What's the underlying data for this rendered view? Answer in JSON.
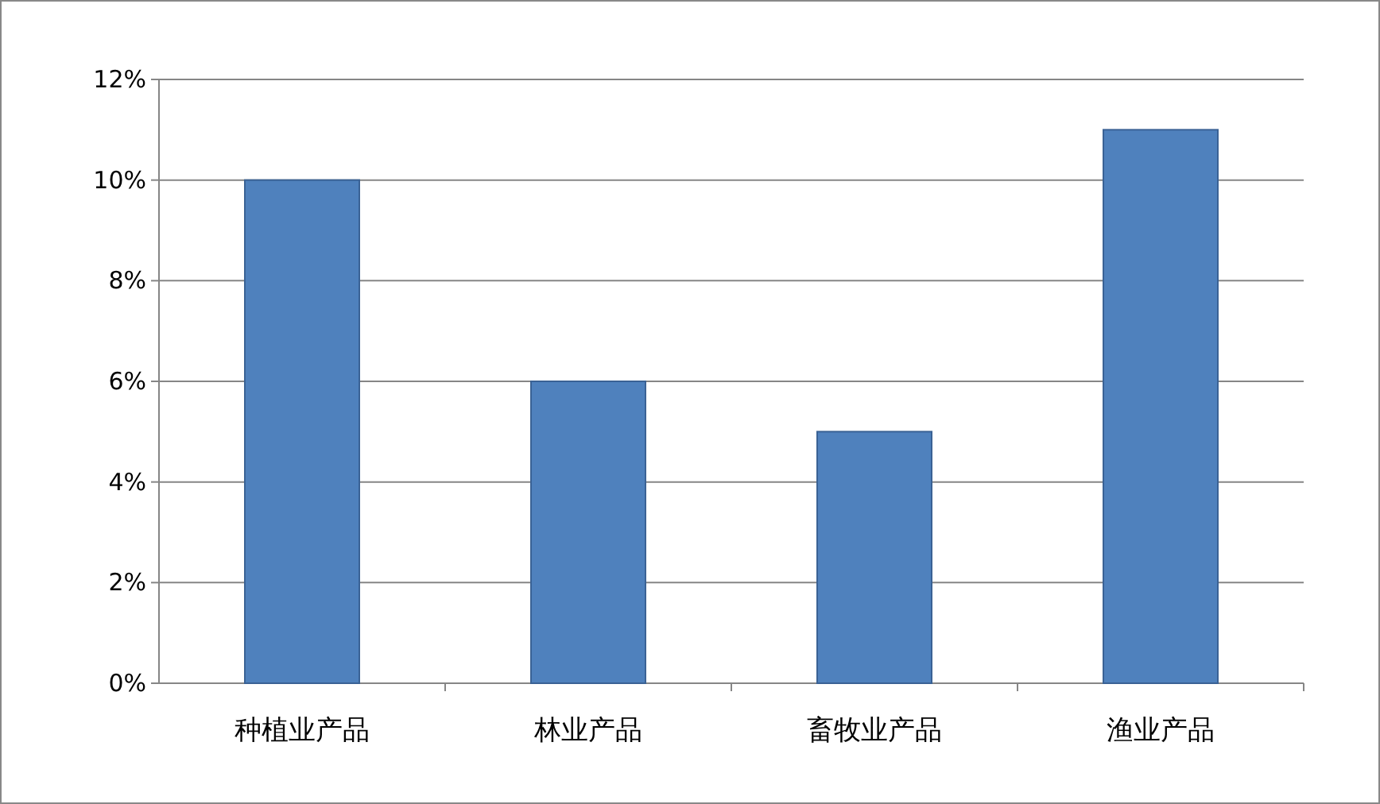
{
  "chart_data": {
    "type": "bar",
    "categories": [
      "种植业产品",
      "林业产品",
      "畜牧业产品",
      "渔业产品"
    ],
    "values": [
      10,
      6,
      5,
      11
    ],
    "color": "#4f81bd",
    "ylim": [
      0,
      12
    ],
    "yticks": [
      {
        "value": 0,
        "label": "0%"
      },
      {
        "value": 2,
        "label": "2%"
      },
      {
        "value": 4,
        "label": "4%"
      },
      {
        "value": 6,
        "label": "6%"
      },
      {
        "value": 8,
        "label": "8%"
      },
      {
        "value": 10,
        "label": "10%"
      },
      {
        "value": 12,
        "label": "12%"
      }
    ],
    "grid": "y"
  }
}
